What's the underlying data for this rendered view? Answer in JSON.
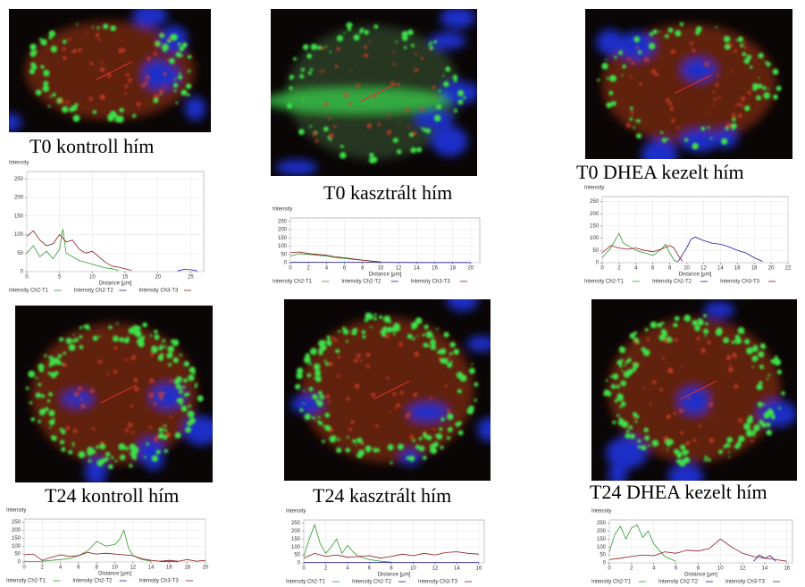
{
  "chart_data": [
    {
      "type": "line",
      "title": "T0 kontroll hím",
      "ylabel": "Intensity",
      "xlabel": "Distance [µm]",
      "grid": true,
      "xlim": [
        0,
        27
      ],
      "xticks": [
        0,
        5,
        10,
        15,
        20,
        25
      ],
      "ylim": [
        0,
        270
      ],
      "yticks": [
        0,
        50,
        100,
        150,
        200,
        250
      ],
      "series": [
        {
          "name": "Intensity Ch2-T1",
          "color": "#2e9a2e",
          "x": [
            0,
            1,
            2,
            3,
            4,
            5,
            5.5,
            6,
            7,
            8,
            9,
            10,
            11,
            12,
            13,
            14
          ],
          "values": [
            50,
            70,
            40,
            55,
            35,
            60,
            115,
            50,
            40,
            30,
            25,
            20,
            15,
            10,
            8,
            3
          ]
        },
        {
          "name": "Intensity Ch2-T2",
          "color": "#1a1aa0",
          "x": [
            23,
            24,
            25,
            26
          ],
          "values": [
            2,
            6,
            5,
            2
          ]
        },
        {
          "name": "Intensity Ch3-T3",
          "color": "#8b1a1a",
          "x": [
            0,
            1,
            2,
            3,
            4,
            5,
            6,
            7,
            8,
            9,
            10,
            11,
            12,
            13,
            14,
            15,
            16
          ],
          "values": [
            95,
            110,
            85,
            70,
            75,
            100,
            80,
            85,
            60,
            50,
            55,
            40,
            25,
            15,
            12,
            8,
            3
          ]
        }
      ]
    },
    {
      "type": "line",
      "title": "T0 kasztrált hím",
      "ylabel": "Intensity",
      "xlabel": "Distance [µm]",
      "grid": true,
      "xlim": [
        0,
        21
      ],
      "xticks": [
        0,
        2,
        4,
        6,
        8,
        10,
        12,
        14,
        16,
        18,
        20
      ],
      "ylim": [
        0,
        270
      ],
      "yticks": [
        0,
        50,
        100,
        150,
        200,
        250
      ],
      "series": [
        {
          "name": "Intensity Ch2-T1",
          "color": "#2e9a2e",
          "x": [
            0,
            1,
            2,
            3,
            4,
            5,
            6,
            7,
            8,
            9,
            10
          ],
          "values": [
            40,
            55,
            50,
            45,
            40,
            30,
            25,
            20,
            15,
            8,
            3
          ]
        },
        {
          "name": "Intensity Ch2-T2",
          "color": "#1a1aa0",
          "x": [
            0,
            5,
            10,
            15,
            20
          ],
          "values": [
            3,
            2,
            2,
            1,
            1
          ]
        },
        {
          "name": "Intensity Ch3-T3",
          "color": "#8b1a1a",
          "x": [
            0,
            1,
            2,
            3,
            4,
            5,
            6,
            7,
            8,
            9,
            10
          ],
          "values": [
            60,
            65,
            55,
            50,
            45,
            35,
            30,
            22,
            15,
            10,
            5
          ]
        }
      ]
    },
    {
      "type": "line",
      "title": "T0 DHEA kezelt hím",
      "ylabel": "Intensity",
      "xlabel": "Distance [µm]",
      "grid": true,
      "xlim": [
        0,
        22
      ],
      "xticks": [
        0,
        2,
        4,
        6,
        8,
        10,
        12,
        14,
        16,
        18,
        20,
        22
      ],
      "ylim": [
        0,
        270
      ],
      "yticks": [
        0,
        50,
        100,
        150,
        200,
        250
      ],
      "series": [
        {
          "name": "Intensity Ch2-T1",
          "color": "#2e9a2e",
          "x": [
            0,
            1,
            1.5,
            2,
            2.5,
            3,
            4,
            5,
            6,
            7,
            7.5,
            8,
            8.5,
            9
          ],
          "values": [
            20,
            60,
            90,
            120,
            80,
            70,
            50,
            40,
            30,
            55,
            75,
            40,
            10,
            3
          ]
        },
        {
          "name": "Intensity Ch2-T2",
          "color": "#1a1aa0",
          "x": [
            9,
            10,
            10.5,
            11,
            12,
            13,
            14,
            15,
            16,
            17,
            18,
            19
          ],
          "values": [
            5,
            60,
            95,
            105,
            90,
            80,
            75,
            65,
            50,
            40,
            20,
            5
          ]
        },
        {
          "name": "Intensity Ch3-T3",
          "color": "#8b1a1a",
          "x": [
            0,
            1,
            2,
            3,
            4,
            5,
            6,
            7,
            8,
            8.5,
            9,
            9.5
          ],
          "values": [
            40,
            70,
            60,
            55,
            60,
            50,
            45,
            55,
            70,
            60,
            30,
            5
          ]
        }
      ]
    },
    {
      "type": "line",
      "title": "T24 kontroll hím",
      "ylabel": "Intensity",
      "xlabel": "Distance [µm]",
      "grid": true,
      "xlim": [
        0,
        20
      ],
      "xticks": [
        0,
        2,
        4,
        6,
        8,
        10,
        12,
        14,
        16,
        18,
        20
      ],
      "ylim": [
        0,
        270
      ],
      "yticks": [
        0,
        50,
        100,
        150,
        200,
        250
      ],
      "series": [
        {
          "name": "Intensity Ch2-T1",
          "color": "#2e9a2e",
          "x": [
            0,
            1,
            2,
            3,
            4,
            5,
            6,
            7,
            8,
            9,
            10,
            10.5,
            11,
            11.5,
            12,
            13,
            14
          ],
          "values": [
            5,
            3,
            5,
            10,
            15,
            20,
            40,
            70,
            130,
            100,
            110,
            140,
            200,
            90,
            40,
            15,
            5
          ]
        },
        {
          "name": "Intensity Ch2-T2",
          "color": "#1a1aa0",
          "x": [
            15,
            16,
            17
          ],
          "values": [
            3,
            5,
            3
          ]
        },
        {
          "name": "Intensity Ch3-T3",
          "color": "#8b1a1a",
          "x": [
            0,
            1,
            2,
            3,
            4,
            5,
            6,
            7,
            8,
            9,
            10,
            11,
            12,
            13,
            14,
            15,
            16,
            17,
            18,
            19,
            20
          ],
          "values": [
            45,
            50,
            10,
            30,
            45,
            35,
            40,
            60,
            50,
            55,
            50,
            45,
            40,
            20,
            10,
            5,
            10,
            5,
            15,
            5,
            10
          ]
        }
      ]
    },
    {
      "type": "line",
      "title": "T24 kasztrált hím",
      "ylabel": "Intensity",
      "xlabel": "Distance [µm]",
      "grid": true,
      "xlim": [
        0,
        16.5
      ],
      "xticks": [
        0,
        2,
        4,
        6,
        8,
        10,
        12,
        14,
        16
      ],
      "ylim": [
        0,
        270
      ],
      "yticks": [
        0,
        50,
        100,
        150,
        200,
        250
      ],
      "series": [
        {
          "name": "Intensity Ch2-T1",
          "color": "#2e9a2e",
          "x": [
            0,
            0.5,
            1,
            1.5,
            2,
            2.5,
            3,
            3.5,
            4,
            4.5,
            5,
            6,
            7,
            8
          ],
          "values": [
            40,
            150,
            240,
            120,
            60,
            100,
            150,
            60,
            110,
            70,
            40,
            20,
            10,
            5
          ]
        },
        {
          "name": "Intensity Ch2-T2",
          "color": "#1a1aa0",
          "x": [
            0,
            8,
            16
          ],
          "values": [
            2,
            2,
            2
          ]
        },
        {
          "name": "Intensity Ch3-T3",
          "color": "#8b1a1a",
          "x": [
            0,
            1,
            2,
            3,
            4,
            5,
            6,
            7,
            8,
            9,
            10,
            11,
            12,
            13,
            14,
            15,
            16
          ],
          "values": [
            30,
            60,
            40,
            50,
            35,
            40,
            45,
            30,
            40,
            55,
            45,
            60,
            50,
            65,
            70,
            60,
            55
          ]
        }
      ]
    },
    {
      "type": "line",
      "title": "T24 DHEA kezelt hím",
      "ylabel": "Intensity",
      "xlabel": "Distance [µm]",
      "grid": true,
      "xlim": [
        0,
        16.5
      ],
      "xticks": [
        0,
        2,
        4,
        6,
        8,
        10,
        12,
        14,
        16
      ],
      "ylim": [
        0,
        270
      ],
      "yticks": [
        0,
        50,
        100,
        150,
        200,
        250
      ],
      "series": [
        {
          "name": "Intensity Ch2-T1",
          "color": "#2e9a2e",
          "x": [
            0,
            0.5,
            1,
            1.5,
            2,
            2.5,
            3,
            3.5,
            4,
            4.5,
            5,
            6
          ],
          "values": [
            70,
            180,
            230,
            150,
            220,
            240,
            160,
            200,
            120,
            80,
            40,
            10
          ]
        },
        {
          "name": "Intensity Ch2-T2",
          "color": "#1a1aa0",
          "x": [
            13,
            13.5,
            14,
            14.5,
            15
          ],
          "values": [
            10,
            50,
            30,
            45,
            10
          ]
        },
        {
          "name": "Intensity Ch3-T3",
          "color": "#8b1a1a",
          "x": [
            0,
            1,
            2,
            3,
            4,
            5,
            6,
            7,
            8,
            9,
            10,
            11,
            12,
            13,
            14,
            15,
            16
          ],
          "values": [
            20,
            30,
            40,
            50,
            45,
            70,
            60,
            80,
            75,
            90,
            150,
            100,
            60,
            40,
            30,
            20,
            10
          ]
        }
      ]
    }
  ]
}
